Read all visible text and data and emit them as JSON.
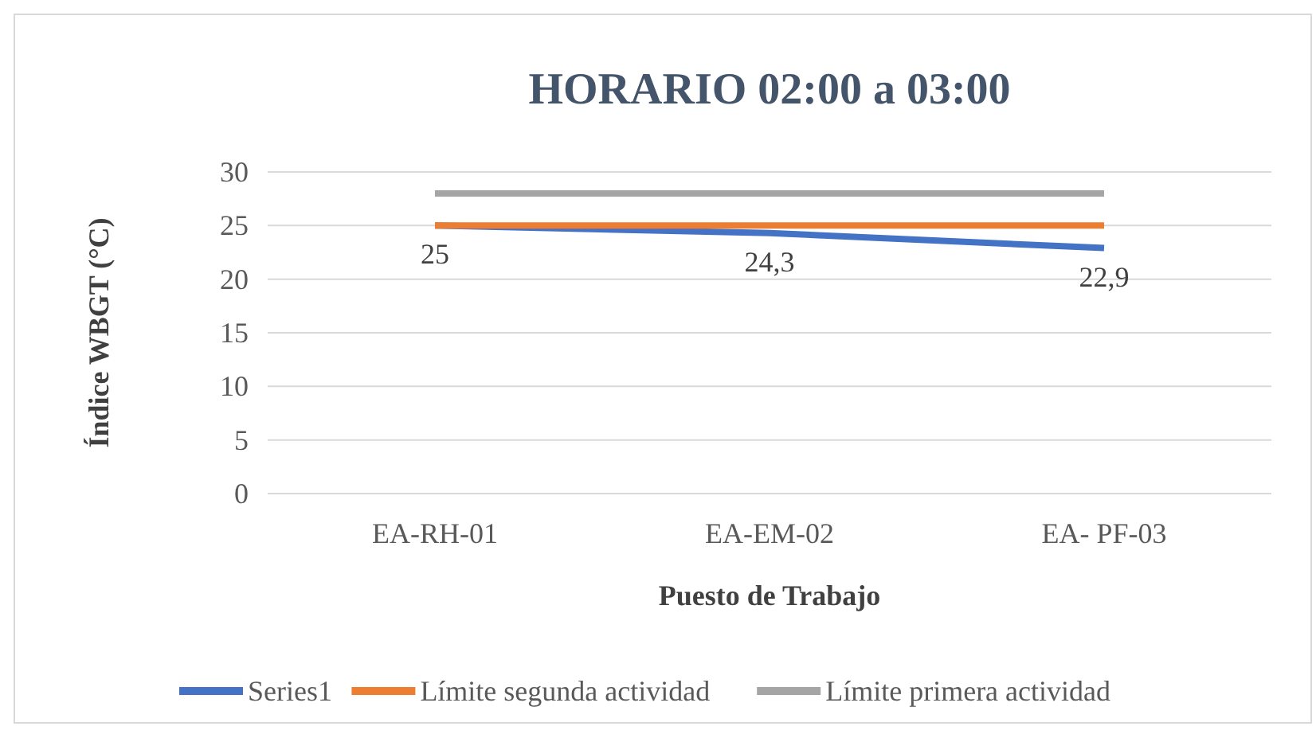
{
  "chart_data": {
    "type": "line",
    "title": "HORARIO 02:00 a 03:00",
    "xlabel": "Puesto de Trabajo",
    "ylabel": "Índice WBGT (°C)",
    "categories": [
      "EA-RH-01",
      "EA-EM-02",
      "EA- PF-03"
    ],
    "series": [
      {
        "name": "Series1",
        "color": "#4472c4",
        "values": [
          25,
          24.3,
          22.9
        ],
        "value_labels": [
          "25",
          "24,3",
          "22,9"
        ]
      },
      {
        "name": "Límite segunda actividad",
        "color": "#ed7d31",
        "values": [
          25,
          25,
          25
        ]
      },
      {
        "name": "Límite primera actividad",
        "color": "#a5a5a5",
        "values": [
          28,
          28,
          28
        ]
      }
    ],
    "ylim": [
      0,
      30
    ],
    "yticks": [
      0,
      5,
      10,
      15,
      20,
      25,
      30
    ],
    "grid": "y",
    "legend": "bottom",
    "marker": "none",
    "line_style": "solid"
  }
}
